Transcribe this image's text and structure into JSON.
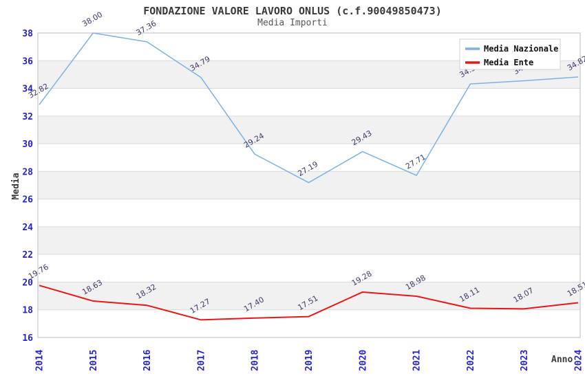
{
  "chart_data": {
    "type": "line",
    "title": "FONDAZIONE VALORE LAVORO ONLUS (c.f.90049850473)",
    "subtitle": "Media Importi",
    "xlabel": "Anno",
    "ylabel": "Media",
    "x": [
      "2014",
      "2015",
      "2016",
      "2017",
      "2018",
      "2019",
      "2020",
      "2021",
      "2022",
      "2023",
      "2024"
    ],
    "series": [
      {
        "name": "Media Nazionale",
        "color": "#7fb0e2",
        "values": [
          32.82,
          38.0,
          37.36,
          34.79,
          29.24,
          27.19,
          29.43,
          27.71,
          34.32,
          34.55,
          34.82
        ]
      },
      {
        "name": "Media Ente",
        "color": "#e81717",
        "values": [
          19.76,
          18.63,
          18.32,
          17.27,
          17.4,
          17.51,
          19.28,
          18.98,
          18.11,
          18.07,
          18.51
        ]
      }
    ],
    "ylim": [
      16,
      38
    ],
    "yticks": [
      16,
      18,
      20,
      22,
      24,
      26,
      28,
      30,
      32,
      34,
      36,
      38
    ],
    "grid": true,
    "legend_position": "top-right",
    "legend_labels": [
      "Media Nazionale",
      "Media Ente"
    ]
  },
  "colors": {
    "axis_tick": "#2323cc",
    "point_label": "#3b3b63",
    "axis_title": "#3a3a3a",
    "band": "#f1f1f1",
    "gridline": "#d9d9d9",
    "plot_border": "#bdbdbd",
    "legend_border": "#d0d0d0",
    "legend_text": "#111111"
  }
}
